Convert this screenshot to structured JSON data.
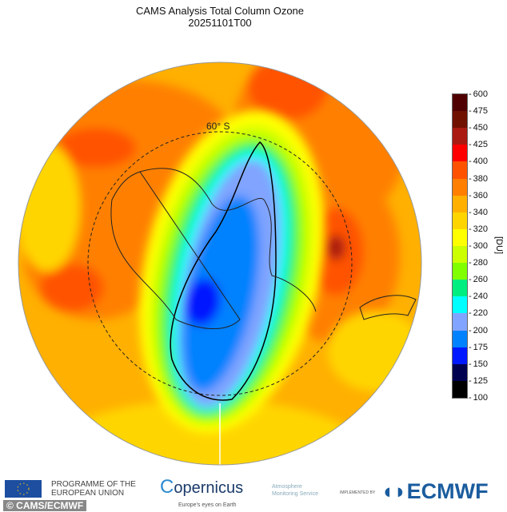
{
  "title": "CAMS Analysis  Total Column Ozone",
  "datetime": "20251101T00",
  "latitude_label": "60° S",
  "colorbar": {
    "unit": "[DU]",
    "levels": [
      100,
      125,
      150,
      175,
      200,
      220,
      240,
      260,
      280,
      300,
      320,
      340,
      360,
      380,
      400,
      425,
      450,
      475,
      600
    ],
    "colors": [
      "#000000",
      "#000050",
      "#0018ff",
      "#0082ff",
      "#80a4ff",
      "#00ffff",
      "#00ee80",
      "#80ff00",
      "#ccff00",
      "#ffff00",
      "#ffd500",
      "#ffb000",
      "#ff8000",
      "#ff5200",
      "#ff0000",
      "#aa1a10",
      "#701000",
      "#500000"
    ]
  },
  "footer": {
    "eu": "PROGRAMME OF THE EUROPEAN UNION",
    "copernicus": "opernicus",
    "copernicus_tag": "Europe's eyes on Earth",
    "cams": "Atmosphere Monitoring Service",
    "implemented": "IMPLEMENTED BY",
    "ecmwf": "ECMWF",
    "credit": "© CAMS/ECMWF"
  }
}
